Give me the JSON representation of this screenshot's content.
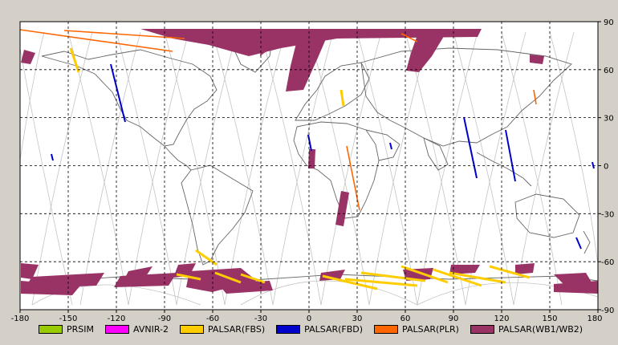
{
  "map": {
    "lon_ticks": [
      "-180",
      "-150",
      "-120",
      "-90",
      "-60",
      "-30",
      "0",
      "30",
      "60",
      "90",
      "120",
      "150",
      "180"
    ],
    "lat_ticks": [
      "90",
      "60",
      "30",
      "0",
      "-30",
      "-60",
      "-90"
    ],
    "colors": {
      "background": "#d4d0c8",
      "ocean": "#ffffff",
      "orbit_track": "#c4c4c4",
      "coastline": "#666666",
      "grid": "#000000"
    }
  },
  "legend": [
    {
      "label": "PRSIM",
      "color": "#99cc00"
    },
    {
      "label": "AVNIR-2",
      "color": "#ff00ff"
    },
    {
      "label": "PALSAR(FBS)",
      "color": "#ffcc00"
    },
    {
      "label": "PALSAR(FBD)",
      "color": "#0000cc"
    },
    {
      "label": "PALSAR(PLR)",
      "color": "#ff6600"
    },
    {
      "label": "PALSAR(WB1/WB2)",
      "color": "#993366"
    }
  ]
}
